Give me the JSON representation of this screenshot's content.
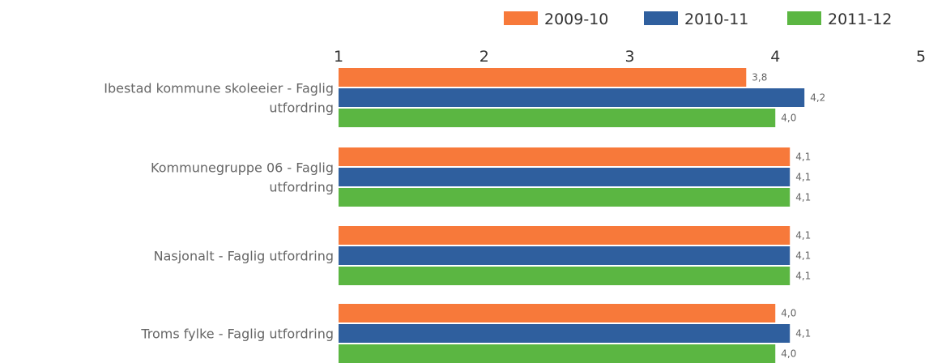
{
  "chart_data": {
    "type": "bar",
    "orientation": "horizontal",
    "xlim": [
      1,
      5
    ],
    "ticks": [
      "1",
      "2",
      "3",
      "4",
      "5"
    ],
    "legend_position": "top-right",
    "categories": [
      [
        "Ibestad kommune skoleeier - Faglig",
        "utfordring"
      ],
      [
        "Kommunegruppe 06 - Faglig",
        "utfordring"
      ],
      [
        "Nasjonalt - Faglig utfordring"
      ],
      [
        "Troms fylke - Faglig utfordring"
      ]
    ],
    "series": [
      {
        "name": "2009-10",
        "color": "#f7793a",
        "values": [
          3.8,
          4.1,
          4.1,
          4.0
        ],
        "labels": [
          "3,8",
          "4,1",
          "4,1",
          "4,0"
        ]
      },
      {
        "name": "2010-11",
        "color": "#2f5f9e",
        "values": [
          4.2,
          4.1,
          4.1,
          4.1
        ],
        "labels": [
          "4,2",
          "4,1",
          "4,1",
          "4,1"
        ]
      },
      {
        "name": "2011-12",
        "color": "#5bb642",
        "values": [
          4.0,
          4.1,
          4.1,
          4.0
        ],
        "labels": [
          "4,0",
          "4,1",
          "4,1",
          "4,0"
        ]
      }
    ]
  }
}
